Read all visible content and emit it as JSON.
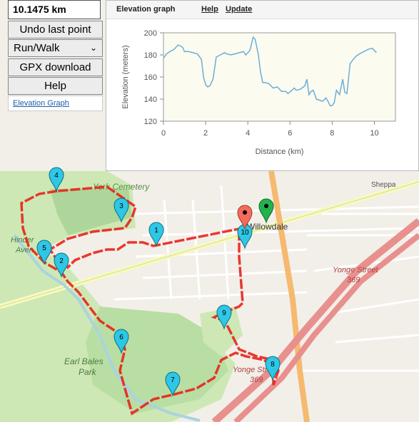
{
  "distance_display": "10.1475 km",
  "controls": {
    "undo_label": "Undo last point",
    "mode_selected": "Run/Walk",
    "gpx_label": "GPX download",
    "help_label": "Help",
    "elevation_link": "Elevation Graph"
  },
  "elevation_panel": {
    "title": "Elevation graph",
    "help_link": "Help",
    "update_link": "Update"
  },
  "chart_data": {
    "type": "line",
    "title": "",
    "xlabel": "Distance (km)",
    "ylabel": "Elevation (meters)",
    "xlim": [
      0,
      11
    ],
    "ylim": [
      120,
      200
    ],
    "xticks": [
      0,
      2,
      4,
      6,
      8,
      10
    ],
    "yticks": [
      120,
      140,
      160,
      180,
      200
    ],
    "grid": false,
    "color": "#6baed6",
    "series": [
      {
        "x": [
          0,
          0.15,
          0.3,
          0.5,
          0.7,
          0.9,
          1.0,
          1.2,
          1.4,
          1.6,
          1.8,
          1.9,
          2.0,
          2.1,
          2.2,
          2.35,
          2.5,
          2.7,
          2.9,
          3.0,
          3.2,
          3.4,
          3.6,
          3.8,
          3.9,
          4.0,
          4.1,
          4.2,
          4.25,
          4.35,
          4.5,
          4.6,
          4.7,
          4.8,
          5.0,
          5.2,
          5.4,
          5.6,
          5.8,
          5.9,
          6.1,
          6.2,
          6.3,
          6.5,
          6.7,
          6.8,
          6.9,
          7.0,
          7.1,
          7.25,
          7.4,
          7.55,
          7.7,
          7.8,
          7.9,
          8.0,
          8.1,
          8.2,
          8.35,
          8.5,
          8.6,
          8.7,
          8.85,
          9.0,
          9.15,
          9.3,
          9.5,
          9.7,
          9.9,
          10.0,
          10.1
        ],
        "y": [
          177,
          181,
          183,
          185,
          189,
          187,
          183,
          183,
          182,
          181,
          176,
          160,
          153,
          151,
          152,
          158,
          178,
          180,
          182,
          181,
          180,
          181,
          182,
          183,
          180,
          182,
          184,
          192,
          196,
          194,
          180,
          165,
          155,
          155,
          154,
          150,
          151,
          147,
          147,
          145,
          148,
          150,
          148,
          149,
          152,
          158,
          144,
          147,
          148,
          140,
          139,
          138,
          141,
          138,
          134,
          134,
          137,
          148,
          144,
          158,
          146,
          145,
          172,
          176,
          179,
          181,
          183,
          185,
          186,
          184,
          182
        ]
      }
    ]
  }
}
